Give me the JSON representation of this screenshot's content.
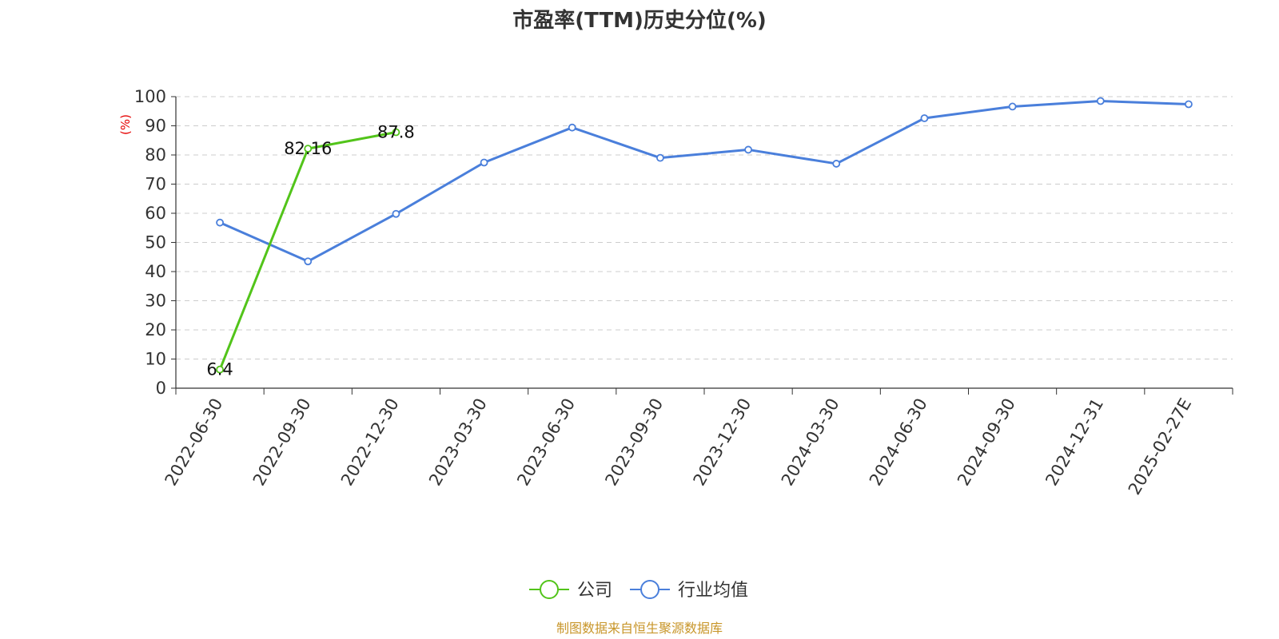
{
  "chart_data": {
    "type": "line",
    "title": "市盈率(TTM)历史分位(%)",
    "ylabel": "(%)",
    "ylim": [
      0,
      100
    ],
    "yticks": [
      0,
      10,
      20,
      30,
      40,
      50,
      60,
      70,
      80,
      90,
      100
    ],
    "categories": [
      "2022-06-30",
      "2022-09-30",
      "2022-12-30",
      "2023-03-30",
      "2023-06-30",
      "2023-09-30",
      "2023-12-30",
      "2024-03-30",
      "2024-06-30",
      "2024-09-30",
      "2024-12-31",
      "2025-02-27E"
    ],
    "grid": true,
    "legend_position": "bottom-center",
    "series": [
      {
        "name": "公司",
        "color": "#52c41a",
        "values": [
          6.4,
          82.16,
          87.8,
          null,
          null,
          null,
          null,
          null,
          null,
          null,
          null,
          null
        ],
        "data_labels": [
          "6.4",
          "82.16",
          "87.8",
          null,
          null,
          null,
          null,
          null,
          null,
          null,
          null,
          null
        ]
      },
      {
        "name": "行业均值",
        "color": "#4a7fdb",
        "values": [
          56.8,
          43.5,
          59.8,
          77.4,
          89.4,
          79.0,
          81.8,
          77.0,
          92.6,
          96.6,
          98.5,
          97.4
        ],
        "data_labels": [
          null,
          null,
          null,
          null,
          null,
          null,
          null,
          null,
          null,
          null,
          null,
          null
        ]
      }
    ],
    "source": "制图数据来自恒生聚源数据库"
  }
}
